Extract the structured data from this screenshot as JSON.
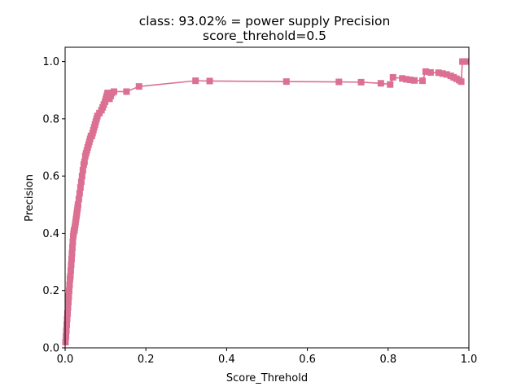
{
  "chart_data": {
    "type": "line",
    "title": "class: 93.02% = power supply Precision",
    "subtitle": "score_threhold=0.5",
    "xlabel": "Score_Threhold",
    "ylabel": "Precision",
    "xlim": [
      0.0,
      1.0
    ],
    "ylim": [
      0.0,
      1.05
    ],
    "xticks": [
      "0.0",
      "0.2",
      "0.4",
      "0.6",
      "0.8",
      "1.0"
    ],
    "yticks": [
      "0.0",
      "0.2",
      "0.4",
      "0.6",
      "0.8",
      "1.0"
    ],
    "grid": false,
    "colors": {
      "series": "#db7093"
    },
    "marker": "square",
    "series": [
      {
        "x": [
          0.001,
          0.002,
          0.003,
          0.004,
          0.005,
          0.006,
          0.007,
          0.008,
          0.009,
          0.01,
          0.011,
          0.012,
          0.013,
          0.014,
          0.015,
          0.016,
          0.017,
          0.018,
          0.019,
          0.02,
          0.021,
          0.022,
          0.023,
          0.024,
          0.025,
          0.026,
          0.027,
          0.028,
          0.029,
          0.03,
          0.031,
          0.032,
          0.034,
          0.036,
          0.038,
          0.04,
          0.042,
          0.044,
          0.046,
          0.048,
          0.05,
          0.052,
          0.054,
          0.056,
          0.058,
          0.06,
          0.062,
          0.064,
          0.066,
          0.068,
          0.07,
          0.072,
          0.074,
          0.076,
          0.078,
          0.08,
          0.085,
          0.09,
          0.093,
          0.096,
          0.099,
          0.101,
          0.103,
          0.105,
          0.107,
          0.11,
          0.113,
          0.116,
          0.121,
          0.152,
          0.183,
          0.323,
          0.358,
          0.548,
          0.678,
          0.733,
          0.782,
          0.805,
          0.812,
          0.835,
          0.845,
          0.855,
          0.865,
          0.885,
          0.893,
          0.905,
          0.925,
          0.935,
          0.945,
          0.955,
          0.962,
          0.969,
          0.976,
          0.981,
          0.984,
          0.988,
          0.991
        ],
        "y": [
          0.02,
          0.04,
          0.06,
          0.08,
          0.1,
          0.12,
          0.14,
          0.16,
          0.18,
          0.2,
          0.22,
          0.24,
          0.25,
          0.27,
          0.29,
          0.31,
          0.33,
          0.35,
          0.37,
          0.39,
          0.4,
          0.41,
          0.41,
          0.42,
          0.43,
          0.44,
          0.45,
          0.46,
          0.47,
          0.48,
          0.49,
          0.5,
          0.52,
          0.54,
          0.56,
          0.58,
          0.6,
          0.62,
          0.64,
          0.65,
          0.67,
          0.68,
          0.69,
          0.7,
          0.71,
          0.72,
          0.73,
          0.74,
          0.74,
          0.75,
          0.76,
          0.77,
          0.78,
          0.79,
          0.8,
          0.81,
          0.82,
          0.83,
          0.84,
          0.85,
          0.86,
          0.87,
          0.88,
          0.89,
          0.89,
          0.87,
          0.88,
          0.89,
          0.895,
          0.895,
          0.913,
          0.933,
          0.932,
          0.93,
          0.929,
          0.928,
          0.924,
          0.92,
          0.945,
          0.941,
          0.938,
          0.936,
          0.934,
          0.933,
          0.965,
          0.962,
          0.961,
          0.958,
          0.955,
          0.95,
          0.945,
          0.94,
          0.935,
          0.93,
          1.0,
          1.0,
          1.0
        ]
      }
    ]
  }
}
